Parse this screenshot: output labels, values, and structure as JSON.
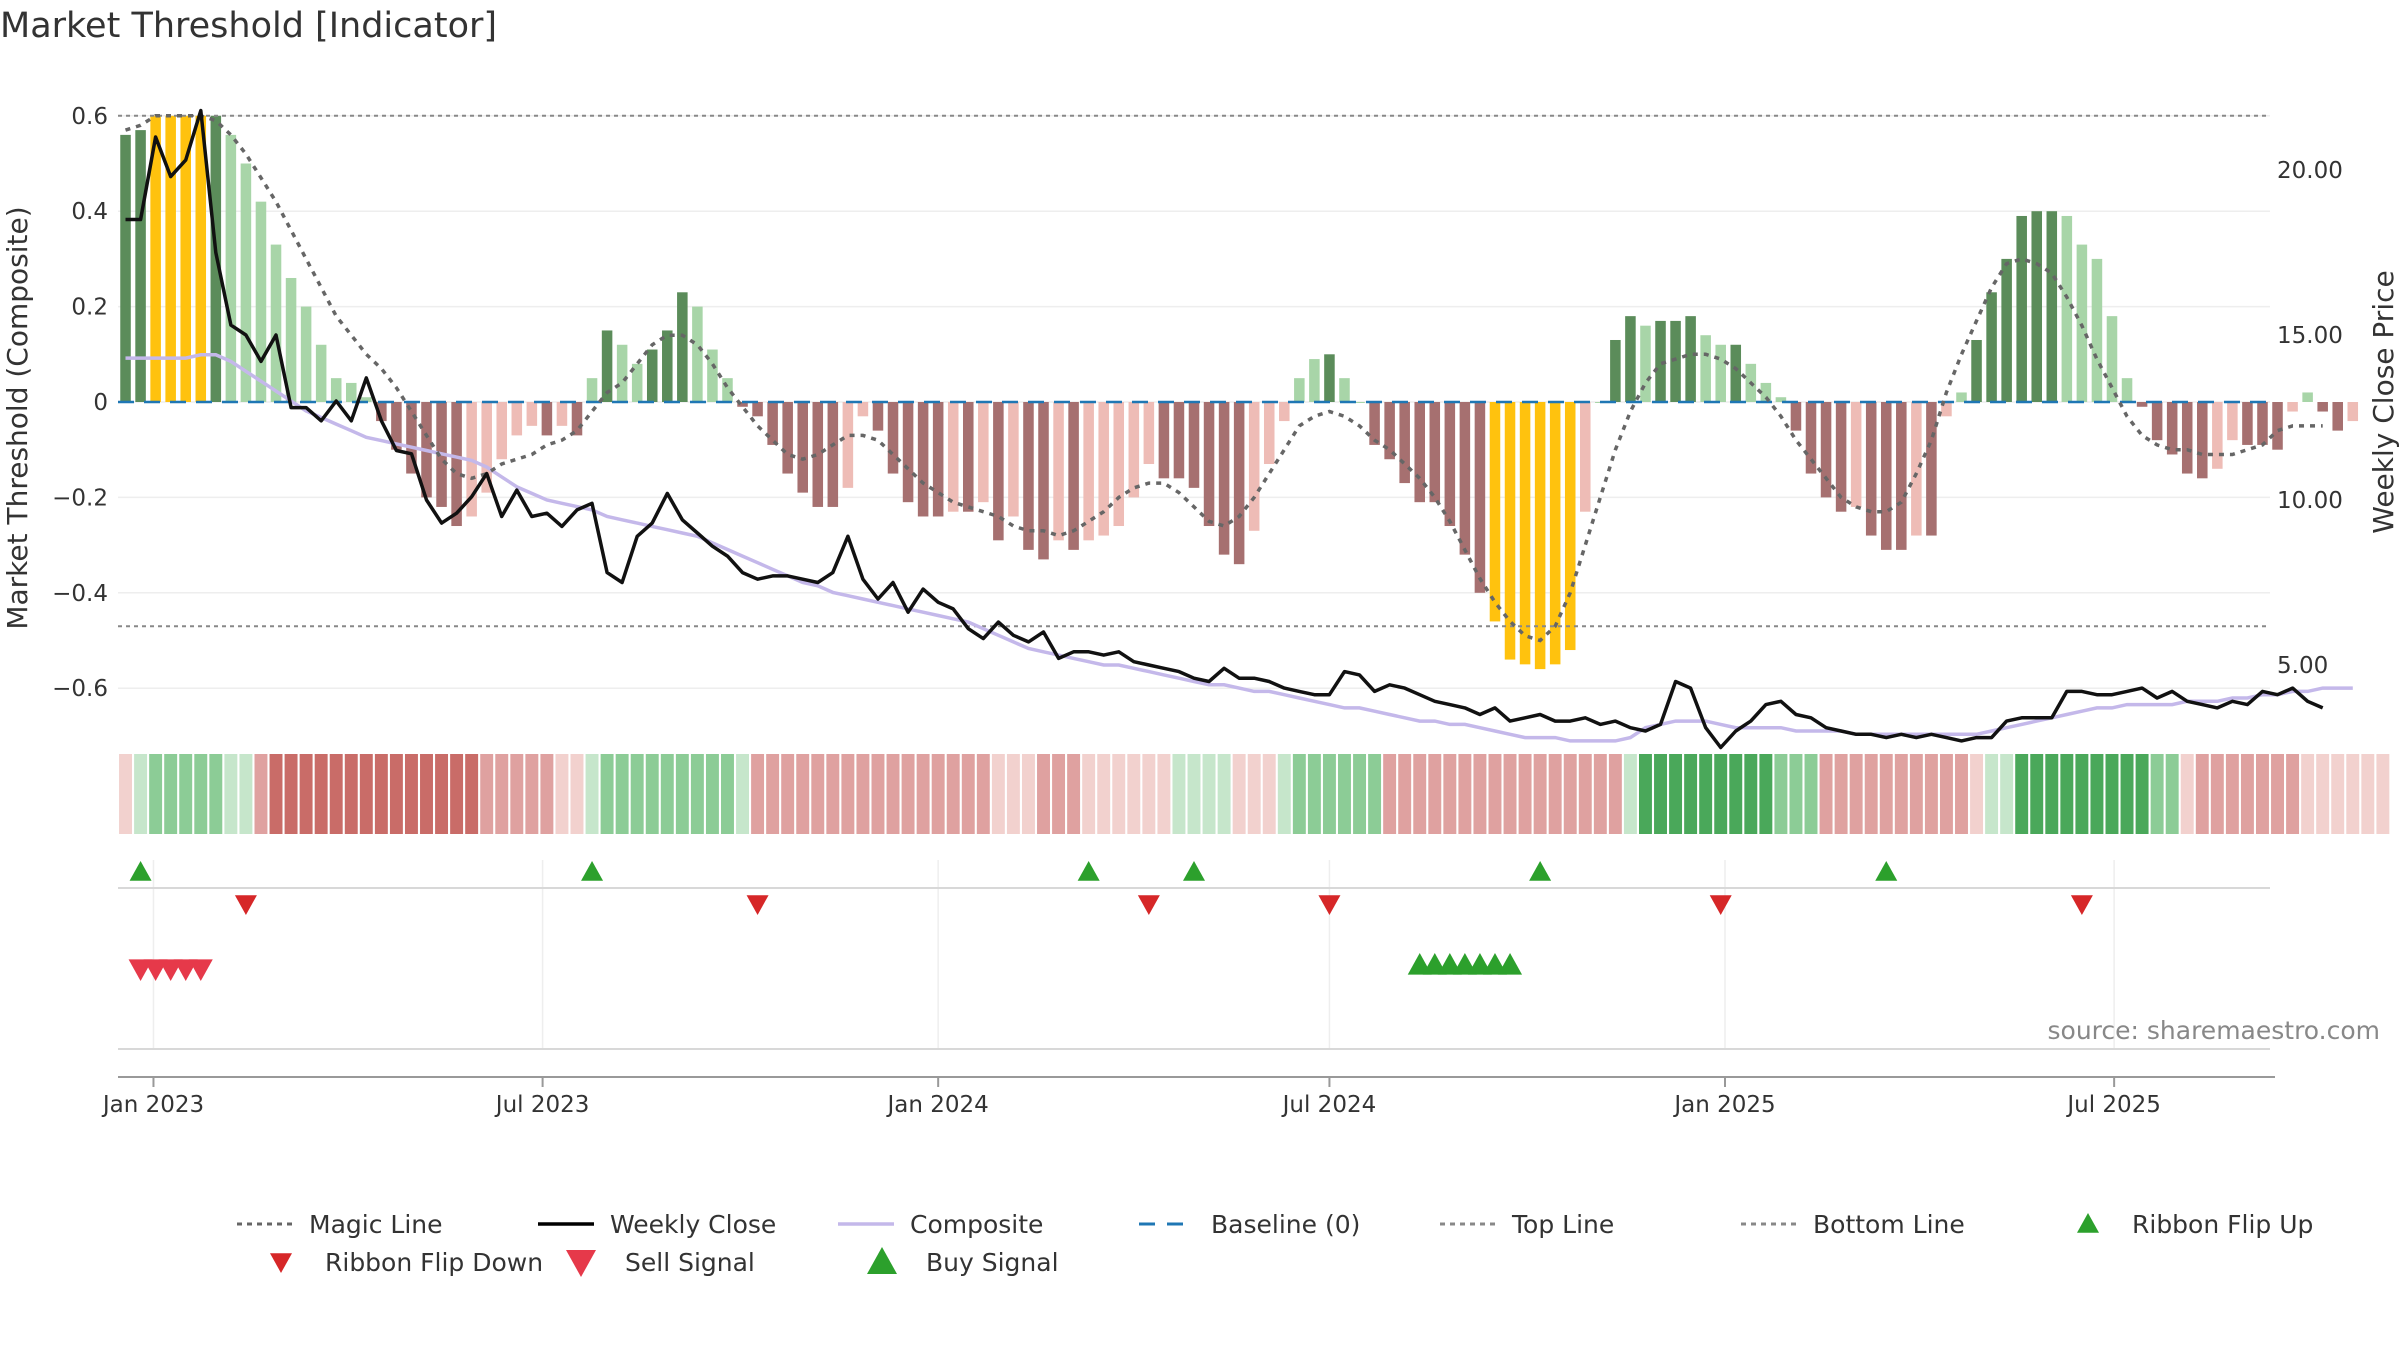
{
  "chart_data": {
    "type": "bar",
    "title": "Market Threshold [Indicator]",
    "ylabel_left": "Market Threshold (Composite)",
    "ylabel_right": "Weekly Close Price",
    "source": "source: sharemaestro.com",
    "x_ticks": [
      "Jan 2023",
      "Jul 2023",
      "Jan 2024",
      "Jul 2024",
      "Jan 2025",
      "Jul 2025"
    ],
    "y_ticks_left": [
      "0.6",
      "0.4",
      "0.2",
      "0",
      "−0.2",
      "−0.4",
      "−0.6"
    ],
    "y_ticks_right": [
      "20.00",
      "15.00",
      "10.00",
      "5.00"
    ],
    "ylim_left": [
      -0.68,
      0.65
    ],
    "ylim_right": [
      3.5,
      22.8
    ],
    "top_line": 0.6,
    "bottom_line": -0.47,
    "start_date": "2022-12-19",
    "weeks": 143,
    "composite": [
      0.56,
      0.57,
      0.6,
      0.6,
      0.6,
      0.6,
      0.6,
      0.56,
      0.5,
      0.42,
      0.33,
      0.26,
      0.2,
      0.12,
      0.05,
      0.04,
      0.01,
      -0.04,
      -0.1,
      -0.15,
      -0.2,
      -0.22,
      -0.26,
      -0.24,
      -0.19,
      -0.12,
      -0.07,
      -0.05,
      -0.07,
      -0.05,
      -0.07,
      0.05,
      0.15,
      0.12,
      0.08,
      0.11,
      0.15,
      0.23,
      0.2,
      0.11,
      0.05,
      -0.01,
      -0.03,
      -0.09,
      -0.15,
      -0.19,
      -0.22,
      -0.22,
      -0.18,
      -0.03,
      -0.06,
      -0.15,
      -0.21,
      -0.24,
      -0.24,
      -0.23,
      -0.23,
      -0.21,
      -0.29,
      -0.24,
      -0.31,
      -0.33,
      -0.29,
      -0.31,
      -0.29,
      -0.28,
      -0.26,
      -0.2,
      -0.13,
      -0.16,
      -0.16,
      -0.18,
      -0.26,
      -0.32,
      -0.34,
      -0.27,
      -0.13,
      -0.04,
      0.05,
      0.09,
      0.1,
      0.05,
      0,
      -0.09,
      -0.12,
      -0.17,
      -0.21,
      -0.21,
      -0.26,
      -0.32,
      -0.4,
      -0.46,
      -0.54,
      -0.55,
      -0.56,
      -0.55,
      -0.52,
      -0.23,
      0,
      0.13,
      0.18,
      0.16,
      0.17,
      0.17,
      0.18,
      0.14,
      0.12,
      0.12,
      0.08,
      0.04,
      0.01,
      -0.06,
      -0.15,
      -0.2,
      -0.23,
      -0.22,
      -0.28,
      -0.31,
      -0.31,
      -0.28,
      -0.28,
      -0.03,
      0.02,
      0.13,
      0.23,
      0.3,
      0.39,
      0.4,
      0.4,
      0.39,
      0.33,
      0.3,
      0.18,
      0.05,
      -0.01,
      -0.08,
      -0.11,
      -0.15,
      -0.16,
      -0.14,
      -0.08,
      -0.09,
      -0.09,
      -0.1,
      -0.02,
      0.02,
      -0.02,
      -0.06,
      -0.04
    ],
    "composite_extremes": [
      false,
      false,
      true,
      true,
      true,
      true,
      false,
      false,
      false,
      false,
      false,
      false,
      false,
      false,
      false,
      false,
      false,
      false,
      false,
      false,
      false,
      false,
      false,
      false,
      false,
      false,
      false,
      false,
      false,
      false,
      false,
      false,
      false,
      false,
      false,
      false,
      false,
      false,
      false,
      false,
      false,
      false,
      false,
      false,
      false,
      false,
      false,
      false,
      false,
      false,
      false,
      false,
      false,
      false,
      false,
      false,
      false,
      false,
      false,
      false,
      false,
      false,
      false,
      false,
      false,
      false,
      false,
      false,
      false,
      false,
      false,
      false,
      false,
      false,
      false,
      false,
      false,
      false,
      false,
      false,
      false,
      false,
      false,
      false,
      false,
      false,
      false,
      false,
      false,
      false,
      false,
      true,
      true,
      true,
      true,
      true,
      true,
      false,
      false,
      false,
      false,
      false,
      false,
      false,
      false,
      false,
      false,
      false,
      false,
      false,
      false,
      false,
      false,
      false,
      false,
      false,
      false,
      false,
      false,
      false,
      false,
      false,
      false,
      false,
      false,
      false,
      false,
      false,
      false,
      false,
      false,
      false,
      false,
      false,
      false,
      false,
      false,
      false,
      false,
      false,
      false,
      false,
      false,
      false,
      false,
      false,
      false,
      false
    ],
    "weekly_close": [
      18.5,
      18.5,
      21.0,
      19.8,
      20.3,
      21.8,
      17.5,
      15.3,
      15.0,
      14.2,
      15.0,
      12.8,
      12.8,
      12.4,
      13.0,
      12.4,
      13.7,
      12.4,
      11.5,
      11.4,
      10.0,
      9.3,
      9.6,
      10.1,
      10.8,
      9.5,
      10.3,
      9.5,
      9.6,
      9.2,
      9.7,
      9.9,
      7.8,
      7.5,
      8.9,
      9.3,
      10.2,
      9.4,
      9.0,
      8.6,
      8.3,
      7.8,
      7.6,
      7.7,
      7.7,
      7.6,
      7.5,
      7.8,
      8.9,
      7.6,
      7.0,
      7.5,
      6.6,
      7.3,
      6.9,
      6.7,
      6.1,
      5.8,
      6.3,
      5.9,
      5.7,
      6.0,
      5.2,
      5.4,
      5.4,
      5.3,
      5.4,
      5.1,
      5.0,
      4.9,
      4.8,
      4.6,
      4.5,
      4.9,
      4.6,
      4.6,
      4.5,
      4.3,
      4.2,
      4.1,
      4.1,
      4.8,
      4.7,
      4.2,
      4.4,
      4.3,
      4.1,
      3.9,
      3.8,
      3.7,
      3.5,
      3.7,
      3.3,
      3.4,
      3.5,
      3.3,
      3.3,
      3.4,
      3.2,
      3.3,
      3.1,
      3.0,
      3.2,
      4.5,
      4.3,
      3.1,
      2.5,
      3.0,
      3.3,
      3.8,
      3.9,
      3.5,
      3.4,
      3.1,
      3.0,
      2.9,
      2.9,
      2.8,
      2.9,
      2.8,
      2.9,
      2.8,
      2.7,
      2.8,
      2.8,
      3.3,
      3.4,
      3.4,
      3.4,
      4.2,
      4.2,
      4.1,
      4.1,
      4.2,
      4.3,
      4.0,
      4.2,
      3.9,
      3.8,
      3.7,
      3.9,
      3.8,
      4.2,
      4.1,
      4.3,
      3.9,
      3.7
    ],
    "composite_smooth": [
      14.3,
      14.3,
      14.3,
      14.3,
      14.3,
      14.4,
      14.4,
      14.2,
      13.9,
      13.6,
      13.3,
      13.0,
      12.7,
      12.5,
      12.3,
      12.1,
      11.9,
      11.8,
      11.7,
      11.6,
      11.5,
      11.4,
      11.3,
      11.2,
      11.0,
      10.7,
      10.4,
      10.2,
      10.0,
      9.9,
      9.8,
      9.7,
      9.5,
      9.4,
      9.3,
      9.2,
      9.1,
      9.0,
      8.9,
      8.7,
      8.5,
      8.3,
      8.1,
      7.9,
      7.7,
      7.5,
      7.4,
      7.2,
      7.1,
      7.0,
      6.9,
      6.8,
      6.7,
      6.6,
      6.5,
      6.4,
      6.3,
      6.1,
      5.9,
      5.7,
      5.5,
      5.4,
      5.3,
      5.2,
      5.1,
      5.0,
      5.0,
      4.9,
      4.8,
      4.7,
      4.6,
      4.5,
      4.4,
      4.4,
      4.3,
      4.2,
      4.2,
      4.1,
      4.0,
      3.9,
      3.8,
      3.7,
      3.7,
      3.6,
      3.5,
      3.4,
      3.3,
      3.3,
      3.2,
      3.2,
      3.1,
      3.0,
      2.9,
      2.8,
      2.8,
      2.8,
      2.7,
      2.7,
      2.7,
      2.7,
      2.8,
      3.1,
      3.2,
      3.3,
      3.3,
      3.3,
      3.2,
      3.1,
      3.1,
      3.1,
      3.1,
      3.0,
      3.0,
      3.0,
      3.0,
      2.9,
      2.9,
      2.9,
      2.9,
      2.9,
      2.9,
      2.9,
      2.9,
      2.9,
      3.0,
      3.1,
      3.2,
      3.3,
      3.4,
      3.5,
      3.6,
      3.7,
      3.7,
      3.8,
      3.8,
      3.8,
      3.8,
      3.9,
      3.9,
      3.9,
      4.0,
      4.0,
      4.1,
      4.1,
      4.2,
      4.2,
      4.3,
      4.3,
      4.3
    ],
    "magic_line": [
      0.57,
      0.58,
      0.6,
      0.6,
      0.6,
      0.6,
      0.59,
      0.56,
      0.52,
      0.47,
      0.42,
      0.36,
      0.3,
      0.24,
      0.18,
      0.14,
      0.1,
      0.07,
      0.03,
      -0.02,
      -0.07,
      -0.12,
      -0.15,
      -0.16,
      -0.15,
      -0.13,
      -0.12,
      -0.11,
      -0.09,
      -0.08,
      -0.06,
      -0.02,
      0.02,
      0.04,
      0.08,
      0.12,
      0.14,
      0.14,
      0.12,
      0.08,
      0.03,
      -0.01,
      -0.05,
      -0.08,
      -0.11,
      -0.12,
      -0.11,
      -0.09,
      -0.07,
      -0.07,
      -0.08,
      -0.11,
      -0.14,
      -0.17,
      -0.19,
      -0.21,
      -0.22,
      -0.23,
      -0.24,
      -0.26,
      -0.27,
      -0.27,
      -0.28,
      -0.27,
      -0.25,
      -0.23,
      -0.2,
      -0.18,
      -0.17,
      -0.17,
      -0.19,
      -0.22,
      -0.25,
      -0.26,
      -0.24,
      -0.2,
      -0.15,
      -0.1,
      -0.05,
      -0.03,
      -0.02,
      -0.03,
      -0.05,
      -0.08,
      -0.1,
      -0.13,
      -0.16,
      -0.2,
      -0.25,
      -0.31,
      -0.37,
      -0.42,
      -0.46,
      -0.49,
      -0.5,
      -0.47,
      -0.4,
      -0.3,
      -0.2,
      -0.1,
      -0.02,
      0.04,
      0.08,
      0.09,
      0.1,
      0.1,
      0.09,
      0.07,
      0.04,
      0.01,
      -0.03,
      -0.08,
      -0.12,
      -0.16,
      -0.2,
      -0.22,
      -0.23,
      -0.23,
      -0.21,
      -0.15,
      -0.08,
      0.02,
      0.1,
      0.17,
      0.24,
      0.29,
      0.3,
      0.29,
      0.27,
      0.22,
      0.16,
      0.09,
      0.03,
      -0.03,
      -0.07,
      -0.09,
      -0.1,
      -0.1,
      -0.11,
      -0.11,
      -0.11,
      -0.1,
      -0.09,
      -0.06,
      -0.05,
      -0.05,
      -0.05
    ],
    "ribbon": [
      -1,
      1,
      2,
      2,
      2,
      2,
      2,
      1,
      1,
      -2,
      -3,
      -3,
      -3,
      -3,
      -3,
      -3,
      -3,
      -3,
      -3,
      -3,
      -3,
      -3,
      -3,
      -3,
      -2,
      -2,
      -2,
      -2,
      -2,
      -1,
      -1,
      1,
      2,
      2,
      2,
      2,
      2,
      2,
      2,
      2,
      2,
      1,
      -2,
      -2,
      -2,
      -2,
      -2,
      -2,
      -2,
      -2,
      -2,
      -2,
      -2,
      -2,
      -2,
      -2,
      -2,
      -2,
      -1,
      -1,
      -1,
      -2,
      -2,
      -2,
      -1,
      -1,
      -1,
      -1,
      -1,
      -1,
      1,
      1,
      1,
      1,
      -1,
      -1,
      -1,
      1,
      2,
      2,
      2,
      2,
      2,
      2,
      -2,
      -2,
      -2,
      -2,
      -2,
      -2,
      -2,
      -2,
      -2,
      -2,
      -2,
      -2,
      -2,
      -2,
      -2,
      -2,
      1,
      3,
      3,
      3,
      3,
      3,
      3,
      3,
      3,
      3,
      2,
      2,
      2,
      -2,
      -2,
      -2,
      -2,
      -2,
      -2,
      -2,
      -2,
      -2,
      -2,
      -1,
      1,
      1,
      3,
      3,
      3,
      3,
      3,
      3,
      3,
      3,
      3,
      2,
      2,
      -1,
      -2,
      -2,
      -2,
      -2,
      -2,
      -2,
      -2,
      -1,
      -1,
      -1,
      -1,
      -1,
      -1
    ],
    "ribbon_flip_up": [
      1,
      31,
      64,
      71,
      94,
      117
    ],
    "ribbon_flip_down": [
      8,
      42,
      68,
      80,
      106,
      130
    ],
    "sell_signals": [
      1,
      2,
      3,
      4,
      5
    ],
    "buy_signals": [
      86,
      87,
      88,
      89,
      90,
      91,
      92
    ],
    "legend": [
      {
        "label": "Magic Line",
        "style": "dotted",
        "color": "#666666"
      },
      {
        "label": "Weekly Close",
        "style": "solid",
        "color": "#000000"
      },
      {
        "label": "Composite",
        "style": "solid",
        "color": "#c4b8ea"
      },
      {
        "label": "Baseline (0)",
        "style": "dashed",
        "color": "#1f77b4"
      },
      {
        "label": "Top Line",
        "style": "dotted",
        "color": "#888888"
      },
      {
        "label": "Bottom Line",
        "style": "dotted",
        "color": "#888888"
      },
      {
        "label": "Ribbon Flip Up",
        "style": "tri-up",
        "color": "#2ca02c"
      },
      {
        "label": "Ribbon Flip Down",
        "style": "tri-down",
        "color": "#d62728"
      },
      {
        "label": "Sell Signal",
        "style": "tri-down",
        "color": "#e6394a"
      },
      {
        "label": "Buy Signal",
        "style": "tri-up",
        "color": "#2ca02c"
      }
    ],
    "colors": {
      "strong_pos": "#5b8c5a",
      "pos": "#a8d5a8",
      "strong_neg": "#a67070",
      "neg": "#eebcb6",
      "extreme": "#ffc20e"
    }
  }
}
